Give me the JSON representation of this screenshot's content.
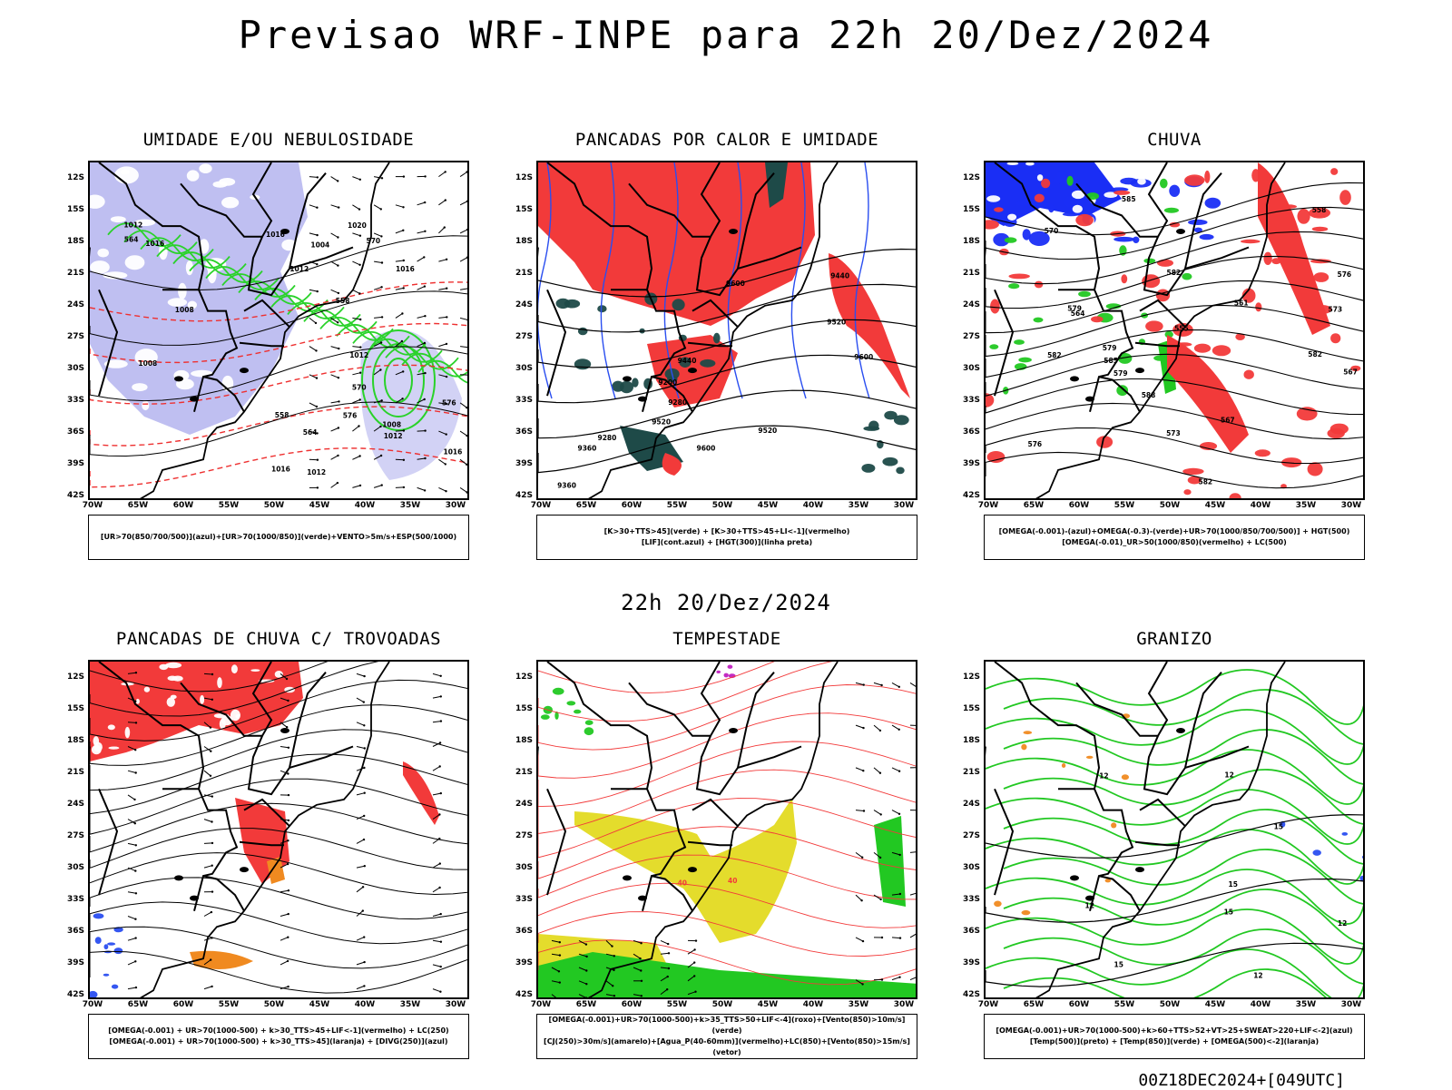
{
  "title": "Previsao WRF-INPE  para 22h 20/Dez/2024",
  "mid_title": "22h 20/Dez/2024",
  "footer": "00Z18DEC2024+[049UTC]",
  "axes": {
    "y_ticks": [
      "12S",
      "15S",
      "18S",
      "21S",
      "24S",
      "27S",
      "30S",
      "33S",
      "36S",
      "39S",
      "42S"
    ],
    "x_ticks": [
      "70W",
      "65W",
      "60W",
      "55W",
      "50W",
      "45W",
      "40W",
      "35W",
      "30W"
    ]
  },
  "chart_data": [
    {
      "type": "other",
      "title": "UMIDADE E/OU NEBULOSIDADE",
      "legend": [
        "[UR>70(850/700/500)](azul)+[UR>70(1000/850)](verde)+VENTO>5m/s+ESP(500/1000)"
      ],
      "contour_labels": [
        "1012",
        "1012",
        "1012",
        "1016",
        "1016",
        "1016",
        "1012",
        "1020",
        "1008",
        "1008",
        "1008",
        "1004",
        "1012",
        "1016",
        "1016",
        "570",
        "576",
        "576",
        "564",
        "570",
        "564",
        "558",
        "558"
      ],
      "xlim": [
        -70,
        -28
      ],
      "ylim": [
        -42,
        -10
      ],
      "colors": {
        "high_ur": "#b4b4ee",
        "low_ur": "#2ad22a",
        "contour": "#000000",
        "thickness": "#ee3030"
      }
    },
    {
      "type": "other",
      "title": "PANCADAS POR CALOR E UMIDADE",
      "legend": [
        "[K>30+TTS>45](verde) + [K>30+TTS>45+LI<-1](vermelho)",
        "[LIF](cont.azul) + [HGT(300)](linha preta)"
      ],
      "contour_labels": [
        "9600",
        "9600",
        "9600",
        "9520",
        "9520",
        "9520",
        "9440",
        "9440",
        "9360",
        "9360",
        "9280",
        "9280",
        "9200"
      ],
      "xlim": [
        -70,
        -28
      ],
      "ylim": [
        -42,
        -10
      ],
      "colors": {
        "red": "#f23a3a",
        "dark": "#1e4a48",
        "blue": "#2a4ef0"
      }
    },
    {
      "type": "other",
      "title": "CHUVA",
      "legend": [
        "[OMEGA(-0.001)-(azul)+OMEGA(-0.3)-(verde)+UR>70(1000/850/700/500)] + HGT(500)",
        "[OMEGA(-0.01)_UR>50(1000/850)(vermelho) + LC(500)"
      ],
      "contour_labels": [
        "588",
        "585",
        "582",
        "582",
        "582",
        "579",
        "579",
        "576",
        "576",
        "573",
        "573",
        "570",
        "567",
        "567",
        "564",
        "561",
        "558",
        "555",
        "585",
        "582",
        "579"
      ],
      "xlim": [
        -70,
        -28
      ],
      "ylim": [
        -42,
        -10
      ],
      "colors": {
        "blue": "#1a2ef5",
        "green": "#22c822",
        "red": "#f23a3a"
      }
    },
    {
      "type": "other",
      "title": "PANCADAS DE CHUVA C/ TROVOADAS",
      "legend": [
        "[OMEGA(-0.001) + UR>70(1000-500) + k>30_TTS>45+LIF<-1](vermelho) + LC(250)",
        "[OMEGA(-0.001) + UR>70(1000-500) + k>30_TTS>45](laranja) + [DIVG(250)](azul)"
      ],
      "contour_labels": [],
      "xlim": [
        -70,
        -28
      ],
      "ylim": [
        -42,
        -10
      ],
      "colors": {
        "red": "#f23a3a",
        "orange": "#f08a20",
        "blue": "#2a4ef0"
      }
    },
    {
      "type": "other",
      "title": "TEMPESTADE",
      "legend": [
        "[OMEGA(-0.001)+UR>70(1000-500)+k>35_TTS>50+LIF<-4](roxo)+[Vento(850)>10m/s](verde)",
        "[CJ(250)>30m/s](amarelo)+[Agua_P(40-60mm)](vermelho)+LC(850)+[Vento(850)>15m/s](vetor)"
      ],
      "contour_labels": [
        "40",
        "40"
      ],
      "xlim": [
        -70,
        -28
      ],
      "ylim": [
        -42,
        -10
      ],
      "colors": {
        "yellow": "#e4dc2c",
        "green": "#22c822",
        "red": "#f23a3a",
        "purple": "#c020c0"
      }
    },
    {
      "type": "other",
      "title": "GRANIZO",
      "legend": [
        "[OMEGA(-0.001)+UR>70(1000-500)+k>60+TTS>52+VT>25+SWEAT>220+LIF<-2](azul)",
        "[Temp(500)](preto) + [Temp(850)](verde) + [OMEGA(500)<-2](laranja)"
      ],
      "contour_labels": [
        "15",
        "15",
        "12",
        "12",
        "12",
        "12",
        "12",
        "15",
        "15"
      ],
      "xlim": [
        -70,
        -28
      ],
      "ylim": [
        -42,
        -10
      ],
      "colors": {
        "green": "#22c822",
        "orange": "#f08a20",
        "blue": "#2a4ef0"
      }
    }
  ]
}
